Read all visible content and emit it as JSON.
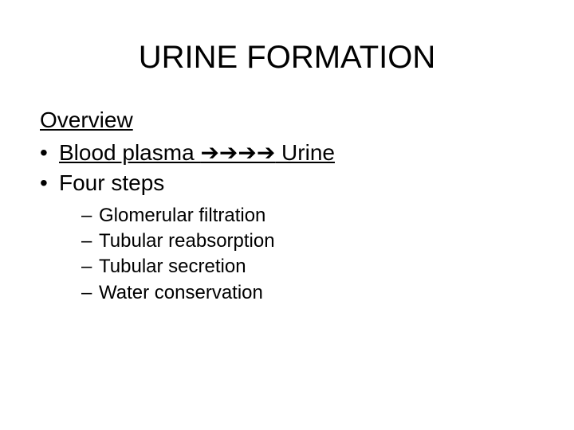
{
  "title": "URINE FORMATION",
  "subheading": "Overview",
  "bullets": [
    {
      "prefix": "Blood plasma ",
      "arrows": "➔➔➔➔",
      "suffix": " Urine",
      "underline": true
    },
    {
      "text": "Four steps",
      "underline": false
    }
  ],
  "subbullets": [
    "Glomerular filtration",
    "Tubular reabsorption",
    "Tubular secretion",
    "Water conservation"
  ],
  "style": {
    "background_color": "#ffffff",
    "text_color": "#000000",
    "title_fontsize": 40,
    "body_fontsize": 28,
    "sub_fontsize": 24,
    "font_family": "Arial"
  }
}
